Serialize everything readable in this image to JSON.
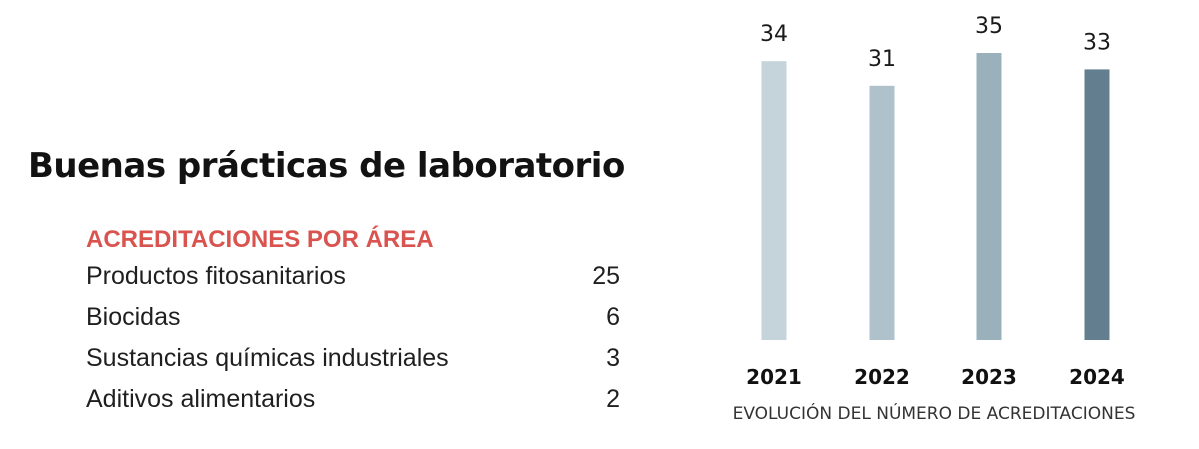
{
  "page": {
    "title": "Buenas prácticas de laboratorio"
  },
  "areas": {
    "heading": "ACREDITACIONES POR ÁREA",
    "items": [
      {
        "label": "Productos fitosanitarios",
        "count": "25"
      },
      {
        "label": "Biocidas",
        "count": "6"
      },
      {
        "label": "Sustancias químicas industriales",
        "count": "3"
      },
      {
        "label": "Aditivos alimentarios",
        "count": "2"
      }
    ],
    "heading_color": "#d9534f"
  },
  "chart_data": {
    "type": "bar",
    "categories": [
      "2021",
      "2022",
      "2023",
      "2024"
    ],
    "values": [
      34,
      31,
      35,
      33
    ],
    "caption": "EVOLUCIÓN DEL NÚMERO DE ACREDITACIONES",
    "ylim": [
      0,
      35
    ],
    "grid": false,
    "bar_colors": [
      "#c5d3da",
      "#afc1ca",
      "#9ab0bb",
      "#637f8f"
    ]
  }
}
